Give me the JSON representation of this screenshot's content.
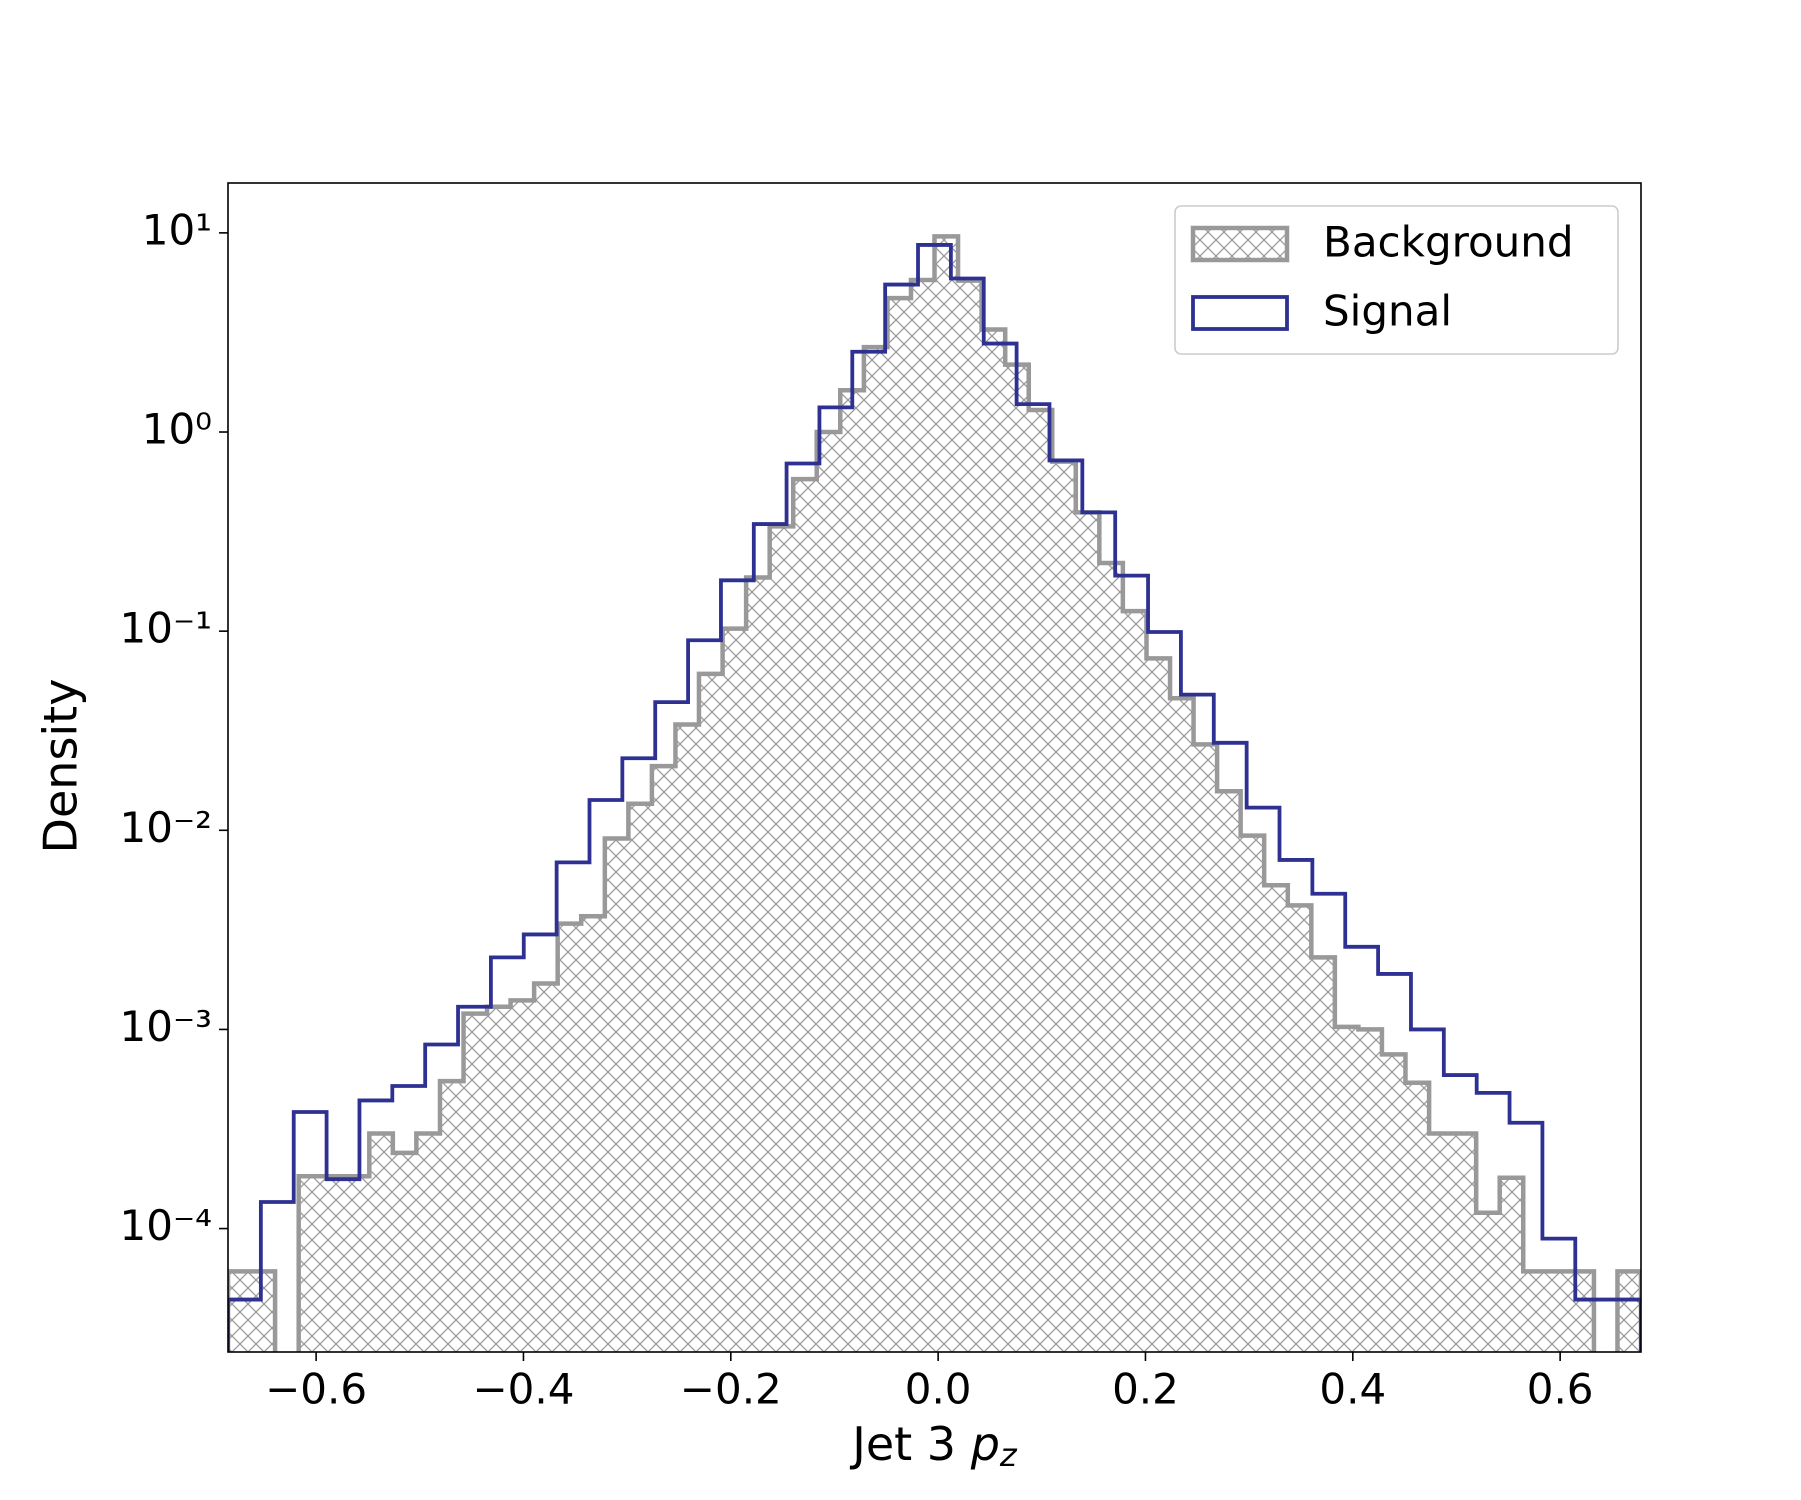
{
  "chart_data": {
    "type": "histogram",
    "xlabel": "Jet 3 pz",
    "ylabel": "Density",
    "xlim": [
      -0.685,
      0.678
    ],
    "ylim": [
      2.4e-05,
      17.8
    ],
    "yscale": "log",
    "xticks": [
      {
        "value": -0.6,
        "label": "−0.6"
      },
      {
        "value": -0.4,
        "label": "−0.4"
      },
      {
        "value": -0.2,
        "label": "−0.2"
      },
      {
        "value": 0,
        "label": "0.0"
      },
      0.2,
      0.4,
      0.6
    ],
    "yticks": [
      {
        "value": 0.0001,
        "label": "10⁻⁴"
      },
      {
        "value": 0.001,
        "label": "10⁻³"
      },
      {
        "value": 0.01,
        "label": "10⁻²"
      },
      {
        "value": 0.1,
        "label": "10⁻¹"
      },
      {
        "value": 1,
        "label": "10⁰"
      },
      {
        "value": 10,
        "label": "10¹"
      }
    ],
    "legend": "upper right",
    "series": [
      {
        "name": "Background",
        "color": "#999999",
        "hatch": true,
        "bins": [
          -0.685,
          -0.6623,
          -0.6396,
          -0.6168,
          -0.5941,
          -0.5714,
          -0.5487,
          -0.526,
          -0.5033,
          -0.4805,
          -0.4578,
          -0.4351,
          -0.4124,
          -0.3897,
          -0.367,
          -0.3443,
          -0.3215,
          -0.2988,
          -0.2761,
          -0.2534,
          -0.2307,
          -0.2079,
          -0.1852,
          -0.1625,
          -0.1398,
          -0.1171,
          -0.0944,
          -0.0716,
          -0.0489,
          -0.0262,
          -0.0035,
          0.0192,
          0.0419,
          0.0647,
          0.0874,
          0.1101,
          0.1328,
          0.1555,
          0.1782,
          0.201,
          0.2237,
          0.2464,
          0.2691,
          0.2918,
          0.3145,
          0.3373,
          0.36,
          0.3827,
          0.4054,
          0.4281,
          0.4508,
          0.4736,
          0.4963,
          0.519,
          0.5417,
          0.5644,
          0.5871,
          0.6099,
          0.6326,
          0.6553,
          0.678
        ],
        "values": [
          6.1e-05,
          6.1e-05,
          0,
          0.000183,
          0.000183,
          0.000183,
          0.0003,
          0.00024,
          0.0003,
          0.00055,
          0.0012,
          0.0013,
          0.0014,
          0.0017,
          0.0034,
          0.0037,
          0.0091,
          0.0136,
          0.021,
          0.034,
          0.061,
          0.103,
          0.186,
          0.336,
          0.58,
          1.0,
          1.62,
          2.67,
          4.7,
          5.8,
          9.6,
          5.76,
          3.27,
          2.18,
          1.29,
          0.71,
          0.395,
          0.22,
          0.126,
          0.073,
          0.046,
          0.027,
          0.0157,
          0.0094,
          0.0053,
          0.0042,
          0.0023,
          0.00103,
          0.001,
          0.00075,
          0.00054,
          0.0003,
          0.0003,
          0.00012,
          0.00018,
          6.1e-05,
          6.1e-05,
          6.1e-05,
          0,
          6.1e-05
        ]
      },
      {
        "name": "Signal",
        "color": "#2e3192",
        "hatch": false,
        "bins": [
          -0.685,
          -0.6533,
          -0.6216,
          -0.5899,
          -0.5582,
          -0.5265,
          -0.4948,
          -0.4631,
          -0.4314,
          -0.3997,
          -0.368,
          -0.3363,
          -0.3046,
          -0.2729,
          -0.2412,
          -0.2095,
          -0.1778,
          -0.1462,
          -0.1145,
          -0.0828,
          -0.0511,
          -0.0194,
          0.0123,
          0.044,
          0.0757,
          0.1074,
          0.1391,
          0.1708,
          0.2025,
          0.2342,
          0.2659,
          0.2976,
          0.3293,
          0.361,
          0.3927,
          0.4244,
          0.4561,
          0.4878,
          0.5195,
          0.5512,
          0.5829,
          0.6146,
          0.6463,
          0.678
        ],
        "values": [
          4.4e-05,
          0.000136,
          0.000385,
          0.000177,
          0.00044,
          0.00052,
          0.00084,
          0.0013,
          0.0023,
          0.003,
          0.0069,
          0.0142,
          0.023,
          0.044,
          0.09,
          0.18,
          0.345,
          0.695,
          1.33,
          2.53,
          5.5,
          8.7,
          5.9,
          2.78,
          1.38,
          0.72,
          0.395,
          0.19,
          0.099,
          0.048,
          0.0275,
          0.013,
          0.0071,
          0.0048,
          0.0026,
          0.0019,
          0.001,
          0.00059,
          0.00048,
          0.00034,
          8.9e-05,
          4.4e-05,
          4.4e-05
        ]
      }
    ]
  }
}
